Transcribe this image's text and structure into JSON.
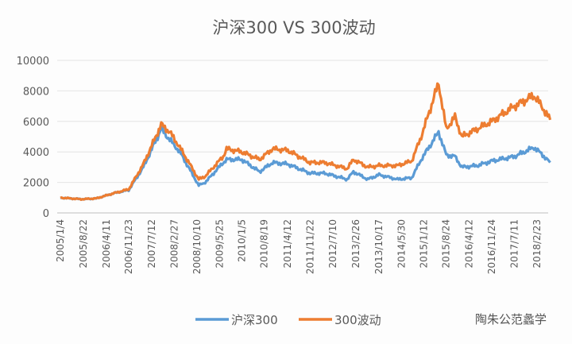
{
  "chart_data": {
    "type": "line",
    "title": "沪深300 VS 300波动",
    "xlabel": "",
    "ylabel": "",
    "ylim": [
      0,
      10000
    ],
    "yticks": [
      "0",
      "2000",
      "4000",
      "6000",
      "8000",
      "10000"
    ],
    "xtick_labels": [
      "2005/1/4",
      "2005/8/22",
      "2006/4/11",
      "2006/11/23",
      "2007/7/12",
      "2008/2/27",
      "2008/10/10",
      "2009/5/25",
      "2010/1/5",
      "2010/8/19",
      "2011/4/12",
      "2011/11/22",
      "2012/7/10",
      "2013/2/26",
      "2013/10/17",
      "2014/5/30",
      "2015/1/12",
      "2015/8/24",
      "2016/4/12",
      "2016/11/24",
      "2017/7/11",
      "2018/2/23"
    ],
    "grid": "horizontal",
    "legend_placement": "bottom",
    "series": [
      {
        "name": "沪深300",
        "color": "#5b9bd5",
        "x": [
          "2005/1/4",
          "2005/8/1",
          "2006/1/1",
          "2006/7/1",
          "2006/11/23",
          "2007/4/20",
          "2007/10/16",
          "2008/1/10",
          "2008/4/20",
          "2008/10/28",
          "2009/1/1",
          "2009/7/1",
          "2009/8/4",
          "2010/1/5",
          "2010/7/1",
          "2010/11/10",
          "2011/4/12",
          "2011/11/22",
          "2012/4/20",
          "2012/11/30",
          "2013/2/1",
          "2013/6/25",
          "2013/10/17",
          "2014/4/20",
          "2014/9/10",
          "2014/12/15",
          "2015/6/8",
          "2015/8/24",
          "2015/11/20",
          "2016/1/28",
          "2016/6/30",
          "2016/11/24",
          "2017/7/11",
          "2018/1/24",
          "2018/4/20",
          "2018/7/5"
        ],
        "values": [
          1000,
          900,
          950,
          1300,
          1500,
          3000,
          5500,
          4800,
          4000,
          1800,
          2000,
          3300,
          3500,
          3500,
          2700,
          3300,
          3200,
          2600,
          2600,
          2200,
          2700,
          2200,
          2500,
          2200,
          2300,
          3500,
          5300,
          3800,
          3700,
          3000,
          3100,
          3400,
          3700,
          4300,
          3800,
          3300
        ]
      },
      {
        "name": "300波动",
        "color": "#ed7d31",
        "x": [
          "2005/1/4",
          "2005/8/1",
          "2006/1/1",
          "2006/7/1",
          "2006/11/23",
          "2007/4/20",
          "2007/10/16",
          "2008/1/10",
          "2008/4/20",
          "2008/10/28",
          "2009/1/1",
          "2009/7/1",
          "2009/8/4",
          "2010/1/5",
          "2010/7/1",
          "2010/11/10",
          "2011/4/12",
          "2011/11/22",
          "2012/4/20",
          "2012/11/30",
          "2013/2/1",
          "2013/6/25",
          "2013/10/17",
          "2014/4/20",
          "2014/9/10",
          "2014/12/15",
          "2015/6/8",
          "2015/8/24",
          "2015/11/20",
          "2016/1/28",
          "2016/6/30",
          "2016/11/24",
          "2017/7/11",
          "2018/1/24",
          "2018/4/20",
          "2018/7/5"
        ],
        "values": [
          1000,
          900,
          950,
          1300,
          1550,
          3200,
          5800,
          5300,
          4300,
          2200,
          2400,
          3700,
          4200,
          4000,
          3500,
          4200,
          4100,
          3300,
          3300,
          2900,
          3500,
          3000,
          3100,
          3100,
          3400,
          5000,
          8500,
          5500,
          6300,
          5000,
          5500,
          6000,
          7000,
          7700,
          6900,
          6100
        ]
      }
    ]
  },
  "watermark": "陶朱公范蠡学"
}
